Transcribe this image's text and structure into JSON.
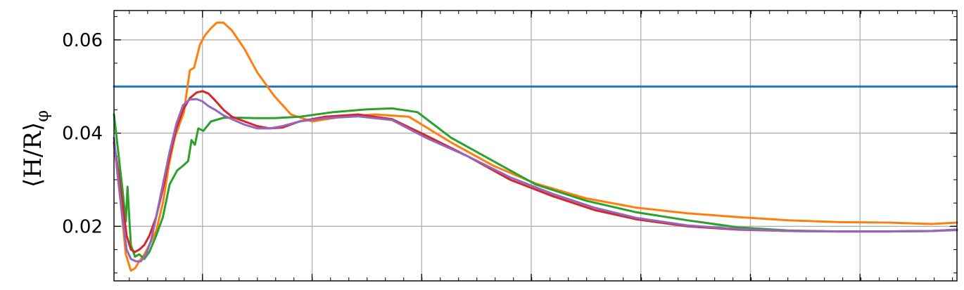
{
  "chart_data": {
    "type": "line",
    "ylabel": "⟨H/R⟩",
    "ylabel_subscript": "φ",
    "ylim": [
      0.0083,
      0.0663
    ],
    "xlim": [
      0,
      1
    ],
    "grid": true,
    "yticks": [
      {
        "value": 0.02,
        "label": "0.02"
      },
      {
        "value": 0.04,
        "label": "0.04"
      },
      {
        "value": 0.06,
        "label": "0.06"
      }
    ],
    "y_minor_step": 0.005,
    "xticks": [
      0.105,
      0.235,
      0.365,
      0.495,
      0.625,
      0.755,
      0.885
    ],
    "x_minor_step": 0.0217,
    "series": [
      {
        "color": "#1f77b4",
        "x": [
          0,
          1
        ],
        "y": [
          0.05,
          0.05
        ]
      },
      {
        "color": "#ff7f0e",
        "x": [
          0.0,
          0.008,
          0.014,
          0.02,
          0.025,
          0.03,
          0.036,
          0.042,
          0.05,
          0.058,
          0.065,
          0.072,
          0.078,
          0.083,
          0.09,
          0.095,
          0.102,
          0.108,
          0.115,
          0.122,
          0.13,
          0.14,
          0.155,
          0.17,
          0.19,
          0.21,
          0.235,
          0.27,
          0.31,
          0.35,
          0.4,
          0.45,
          0.5,
          0.56,
          0.62,
          0.68,
          0.74,
          0.8,
          0.86,
          0.92,
          0.97,
          1.0
        ],
        "y": [
          0.038,
          0.025,
          0.014,
          0.0105,
          0.011,
          0.0125,
          0.014,
          0.016,
          0.019,
          0.025,
          0.033,
          0.039,
          0.042,
          0.0445,
          0.0535,
          0.054,
          0.059,
          0.061,
          0.0625,
          0.0637,
          0.0637,
          0.062,
          0.058,
          0.053,
          0.048,
          0.044,
          0.0425,
          0.0435,
          0.044,
          0.0435,
          0.038,
          0.033,
          0.0292,
          0.026,
          0.024,
          0.0228,
          0.022,
          0.0213,
          0.0209,
          0.0208,
          0.0205,
          0.0208
        ]
      },
      {
        "color": "#2ca02c",
        "x": [
          0.0,
          0.005,
          0.01,
          0.014,
          0.016,
          0.02,
          0.025,
          0.03,
          0.036,
          0.042,
          0.05,
          0.058,
          0.066,
          0.075,
          0.082,
          0.088,
          0.092,
          0.096,
          0.1,
          0.106,
          0.115,
          0.13,
          0.15,
          0.17,
          0.19,
          0.22,
          0.26,
          0.3,
          0.33,
          0.36,
          0.4,
          0.45,
          0.5,
          0.56,
          0.62,
          0.68,
          0.74,
          0.8,
          0.86,
          0.92,
          0.97,
          1.0
        ],
        "y": [
          0.044,
          0.036,
          0.028,
          0.021,
          0.0285,
          0.016,
          0.0135,
          0.014,
          0.013,
          0.0145,
          0.018,
          0.022,
          0.029,
          0.032,
          0.033,
          0.034,
          0.0385,
          0.0375,
          0.041,
          0.0405,
          0.0425,
          0.0433,
          0.0433,
          0.0432,
          0.0432,
          0.0435,
          0.0445,
          0.0451,
          0.0453,
          0.0445,
          0.039,
          0.034,
          0.029,
          0.0255,
          0.023,
          0.0213,
          0.0198,
          0.0191,
          0.0189,
          0.0189,
          0.019,
          0.0192
        ]
      },
      {
        "color": "#d62728",
        "x": [
          0.0,
          0.005,
          0.01,
          0.015,
          0.02,
          0.025,
          0.03,
          0.036,
          0.042,
          0.05,
          0.058,
          0.066,
          0.074,
          0.082,
          0.09,
          0.098,
          0.105,
          0.112,
          0.12,
          0.13,
          0.14,
          0.155,
          0.17,
          0.185,
          0.2,
          0.22,
          0.25,
          0.29,
          0.33,
          0.37,
          0.42,
          0.47,
          0.52,
          0.57,
          0.62,
          0.68,
          0.74,
          0.8,
          0.86,
          0.92,
          0.97,
          1.0
        ],
        "y": [
          0.038,
          0.032,
          0.025,
          0.018,
          0.015,
          0.0145,
          0.015,
          0.016,
          0.018,
          0.022,
          0.028,
          0.035,
          0.041,
          0.045,
          0.0475,
          0.0487,
          0.049,
          0.0485,
          0.047,
          0.045,
          0.0435,
          0.0425,
          0.0415,
          0.041,
          0.0412,
          0.0425,
          0.0435,
          0.044,
          0.043,
          0.0395,
          0.035,
          0.03,
          0.0265,
          0.0235,
          0.0215,
          0.02,
          0.0193,
          0.019,
          0.0189,
          0.0189,
          0.019,
          0.0193
        ]
      },
      {
        "color": "#9467bd",
        "x": [
          0.0,
          0.005,
          0.01,
          0.015,
          0.02,
          0.026,
          0.032,
          0.038,
          0.044,
          0.05,
          0.058,
          0.066,
          0.074,
          0.082,
          0.09,
          0.098,
          0.105,
          0.112,
          0.12,
          0.13,
          0.14,
          0.155,
          0.17,
          0.185,
          0.2,
          0.22,
          0.25,
          0.29,
          0.33,
          0.37,
          0.42,
          0.47,
          0.52,
          0.57,
          0.62,
          0.68,
          0.74,
          0.8,
          0.86,
          0.92,
          0.97,
          1.0
        ],
        "y": [
          0.039,
          0.03,
          0.022,
          0.015,
          0.013,
          0.0125,
          0.0125,
          0.014,
          0.017,
          0.022,
          0.029,
          0.036,
          0.042,
          0.046,
          0.0472,
          0.0473,
          0.0468,
          0.0458,
          0.045,
          0.0438,
          0.043,
          0.0418,
          0.041,
          0.041,
          0.0415,
          0.0425,
          0.0432,
          0.0436,
          0.0428,
          0.039,
          0.035,
          0.0305,
          0.027,
          0.024,
          0.0218,
          0.0202,
          0.0194,
          0.019,
          0.0189,
          0.0189,
          0.019,
          0.0193
        ]
      }
    ]
  }
}
